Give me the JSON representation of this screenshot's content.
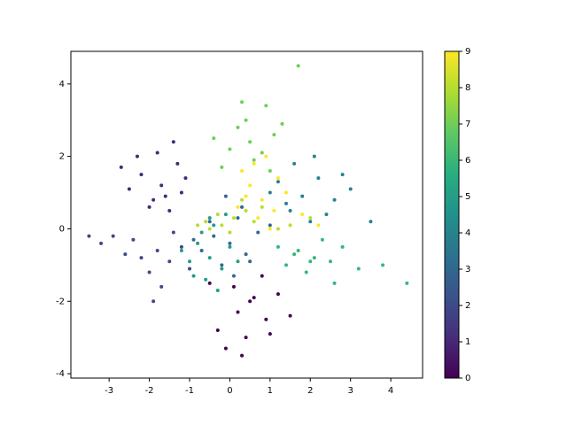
{
  "chart_data": {
    "type": "scatter",
    "xlim": [
      -3.95,
      4.79
    ],
    "ylim": [
      -4.12,
      4.9
    ],
    "xticks": [
      -3,
      -2,
      -1,
      0,
      1,
      2,
      3,
      4
    ],
    "yticks": [
      -4,
      -2,
      0,
      2,
      4
    ],
    "clim": [
      0,
      9
    ],
    "cticks": [
      0,
      1,
      2,
      3,
      4,
      5,
      6,
      7,
      8,
      9
    ],
    "colormap": [
      "#440154",
      "#472d7b",
      "#3b528b",
      "#2c728e",
      "#21918c",
      "#28ae80",
      "#5ec962",
      "#addc30",
      "#fde725"
    ],
    "series": [
      {
        "color": "#440154",
        "x": [
          0.5,
          0.1,
          0.9,
          -0.3,
          1.2,
          0.4,
          -0.5,
          0.8,
          0.2,
          1.5,
          -0.1,
          0.6,
          1.0,
          0.3
        ],
        "y": [
          -2.0,
          -1.6,
          -2.5,
          -2.8,
          -1.8,
          -3.0,
          -1.5,
          -1.3,
          -2.3,
          -2.4,
          -3.3,
          -1.9,
          -2.9,
          -3.5
        ]
      },
      {
        "color": "#482878",
        "x": [
          -1.7,
          -2.2,
          -1.3,
          -1.9,
          -1.5,
          -2.5,
          -1.1,
          -1.8,
          -2.0,
          -1.4,
          -2.7,
          -1.2,
          -1.6,
          -2.3
        ],
        "y": [
          1.2,
          1.5,
          1.8,
          0.8,
          0.5,
          1.1,
          1.4,
          2.1,
          0.6,
          2.4,
          1.7,
          1.0,
          0.9,
          2.0
        ]
      },
      {
        "color": "#3e4989",
        "x": [
          -1.8,
          -2.4,
          -1.5,
          -2.9,
          -1.2,
          -2.0,
          -1.7,
          -3.2,
          -1.4,
          -2.2,
          -1.9,
          -1.0,
          -2.6,
          -3.5
        ],
        "y": [
          -0.6,
          -0.3,
          -0.9,
          -0.2,
          -0.5,
          -1.2,
          -1.6,
          -0.4,
          -0.1,
          -0.8,
          -2.0,
          -1.1,
          -0.7,
          -0.2
        ]
      },
      {
        "color": "#31688e",
        "x": [
          0.0,
          -0.4,
          0.4,
          0.2,
          -0.7,
          0.7,
          -0.2,
          0.3,
          -0.5,
          1.0,
          0.1,
          -0.9,
          0.5,
          -0.1
        ],
        "y": [
          -0.4,
          -0.2,
          -0.7,
          0.3,
          -0.6,
          -0.1,
          -1.0,
          0.6,
          0.2,
          0.1,
          -1.3,
          -0.3,
          -0.9,
          0.9
        ]
      },
      {
        "color": "#26828e",
        "x": [
          1.8,
          2.2,
          1.5,
          2.6,
          1.2,
          2.0,
          3.0,
          1.6,
          2.4,
          1.0,
          3.5,
          2.8,
          1.4,
          2.1
        ],
        "y": [
          0.9,
          1.4,
          0.5,
          0.8,
          1.3,
          0.2,
          1.1,
          1.8,
          0.4,
          1.0,
          0.2,
          1.5,
          0.7,
          2.0
        ]
      },
      {
        "color": "#1f9e89",
        "x": [
          -0.5,
          -0.8,
          -0.2,
          -0.6,
          -1.0,
          0.0,
          -0.4,
          -0.7,
          -0.3,
          0.2,
          -0.9,
          -0.1,
          -0.5,
          -1.2
        ],
        "y": [
          -0.8,
          -0.4,
          -1.1,
          -1.4,
          -0.9,
          -0.5,
          0.1,
          -0.1,
          -1.7,
          -0.9,
          -1.3,
          0.4,
          0.3,
          -0.6
        ]
      },
      {
        "color": "#35b779",
        "x": [
          2.1,
          1.7,
          2.5,
          1.4,
          2.8,
          1.9,
          3.2,
          2.3,
          1.6,
          3.8,
          2.6,
          1.2,
          2.0,
          4.4
        ],
        "y": [
          -0.8,
          -0.6,
          -0.9,
          -1.0,
          -0.5,
          -1.2,
          -1.1,
          -0.3,
          -0.7,
          -1.0,
          -1.5,
          -0.5,
          -0.9,
          -1.5
        ]
      },
      {
        "color": "#6ece58",
        "x": [
          0.5,
          0.2,
          0.8,
          0.0,
          1.1,
          0.4,
          -0.2,
          0.9,
          0.6,
          1.3,
          0.3,
          1.7,
          1.0,
          -0.4
        ],
        "y": [
          2.4,
          2.8,
          2.1,
          2.2,
          2.6,
          3.0,
          1.7,
          3.4,
          1.9,
          2.9,
          3.5,
          4.5,
          1.6,
          2.5
        ]
      },
      {
        "color": "#b5de2b",
        "x": [
          -0.2,
          0.1,
          -0.5,
          0.4,
          -0.8,
          0.0,
          0.3,
          -0.3,
          0.6,
          1.5,
          2.0,
          0.8,
          -0.6,
          1.2
        ],
        "y": [
          0.1,
          0.3,
          0.0,
          0.5,
          0.1,
          -0.1,
          0.8,
          0.4,
          0.2,
          0.1,
          0.3,
          0.6,
          0.2,
          0.0
        ]
      },
      {
        "color": "#fde725",
        "x": [
          0.8,
          0.5,
          1.1,
          0.3,
          1.4,
          0.7,
          0.9,
          1.8,
          0.4,
          1.2,
          0.6,
          2.2,
          1.0,
          0.2
        ],
        "y": [
          0.8,
          1.2,
          0.5,
          1.6,
          1.0,
          0.3,
          2.0,
          0.4,
          0.9,
          1.4,
          1.8,
          0.1,
          0.0,
          0.6
        ]
      }
    ]
  }
}
